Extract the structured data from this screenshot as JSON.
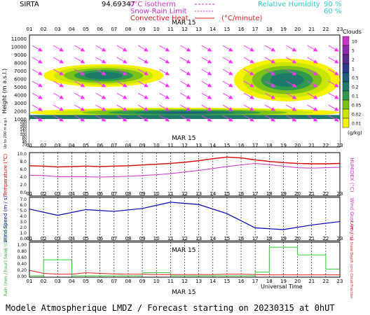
{
  "header": {
    "site": "SIRTA",
    "coords": "94.69347",
    "legend_isotherm": "0°C isotherm",
    "legend_snowrain": "Snow-Rain Limit",
    "legend_convective": "Convective Heat.",
    "legend_rate": "(°C/minute)",
    "legend_rh": "Relative Humidity",
    "rh_90": "90 %",
    "rh_60": "60 %"
  },
  "date_label": "MAR 15",
  "x_hours": [
    "01",
    "02",
    "03",
    "04",
    "05",
    "06",
    "07",
    "08",
    "09",
    "10",
    "11",
    "12",
    "13",
    "14",
    "15",
    "16",
    "17",
    "18",
    "19",
    "20",
    "21",
    "22",
    "23"
  ],
  "footer": {
    "model": "Modele Atmospherique LMDZ / Forecast starting on 20230315 at 0hUT",
    "universal_time": "Universal Time"
  },
  "colors": {
    "clouds": [
      "#f7f300",
      "#cbe600",
      "#7ac21a",
      "#2f9a4e",
      "#1d7a6a",
      "#1c5e7c",
      "#2a3b8c",
      "#5a2a8c",
      "#8c2bb0",
      "#cc33cc"
    ],
    "wind_arrow": "#ff33ff",
    "temperature": "#dd0000",
    "humidex": "#cc33cc",
    "wind": "#0000bb",
    "precip": "#33cc33",
    "cape": "#dd2222"
  },
  "chart_data": [
    {
      "type": "heatmap",
      "title": "Clouds",
      "ylabel": "Height (m a.s.l.)",
      "ylabel2": "Up to 200 m a.g.l.",
      "yticks": [
        "11000",
        "10000",
        "9000",
        "8000",
        "7000",
        "6000",
        "5000",
        "4000",
        "3000",
        "2000",
        "1000"
      ],
      "yticks_low": [
        "200",
        "180",
        "160",
        "140",
        "120",
        "100",
        "80",
        "60",
        "40",
        "20"
      ],
      "colorbar": [
        "0.01",
        "0.02",
        "0.05",
        "0.1",
        "0.2",
        "0.5",
        "1",
        "2",
        "5",
        "10"
      ],
      "colorbar_unit": "(g/kg)",
      "cloud_layers": [
        {
          "name": "mid-level",
          "x_start": 2.0,
          "x_end": 10.5,
          "base": 5000,
          "top": 7800
        },
        {
          "name": "upper",
          "x_start": 15.5,
          "x_end": 23,
          "base": 3200,
          "top": 8500
        },
        {
          "name": "low",
          "x_start": 1,
          "x_end": 23,
          "base": 1200,
          "top": 2400
        }
      ]
    },
    {
      "type": "line",
      "ylabel": "Temperature (°C)",
      "ylabel2": "HUMIDEX (°C)",
      "yticks": [
        "10.0",
        "8.0",
        "6.0",
        "4.0",
        "2.0",
        "0.0"
      ],
      "ylim": [
        0,
        10
      ],
      "x": [
        1,
        2,
        3,
        4,
        5,
        6,
        7,
        8,
        9,
        10,
        11,
        12,
        13,
        14,
        15,
        16,
        17,
        18,
        19,
        20,
        21,
        22,
        23
      ],
      "series": [
        {
          "name": "Temperature",
          "values": [
            7.0,
            6.9,
            6.7,
            6.8,
            6.9,
            6.8,
            6.9,
            7.0,
            7.2,
            7.4,
            7.6,
            7.9,
            8.3,
            8.8,
            9.2,
            9.0,
            8.5,
            8.1,
            7.8,
            7.6,
            7.5,
            7.5,
            7.6
          ]
        },
        {
          "name": "HUMIDEX",
          "values": [
            4.6,
            4.5,
            4.2,
            4.2,
            4.2,
            4.1,
            4.2,
            4.3,
            4.5,
            4.7,
            5.0,
            5.4,
            5.8,
            6.3,
            6.8,
            7.2,
            7.6,
            7.3,
            6.9,
            6.5,
            6.4,
            6.5,
            6.6
          ]
        }
      ]
    },
    {
      "type": "line",
      "ylabel": "Wind Speed (m / s)",
      "ylabel2": "Wind Gust (m / s)",
      "yticks": [
        "7.0",
        "6.0",
        "5.0",
        "4.0",
        "3.0",
        "2.0",
        "1.0",
        "0.0"
      ],
      "ylim": [
        0,
        7
      ],
      "x": [
        1,
        3,
        5,
        7,
        9,
        11,
        13,
        15,
        17,
        19,
        21,
        23
      ],
      "series": [
        {
          "name": "Wind Speed",
          "values": [
            5.2,
            4.1,
            5.1,
            4.8,
            5.3,
            6.4,
            6.0,
            4.4,
            1.9,
            1.6,
            2.4,
            3.0
          ]
        }
      ]
    },
    {
      "type": "bar",
      "ylabel": "Rain (mm / hour) Snow (cm / hour)",
      "ylabel2": "CAPE (J / g) Snow Depth (cm) Cloud Fraction",
      "yticks": [
        "1.00",
        "0.80",
        "0.60",
        "0.40",
        "0.20",
        "0.00"
      ],
      "ylim": [
        0,
        1
      ],
      "x": [
        1,
        2,
        3,
        4,
        5,
        6,
        7,
        8,
        9,
        10,
        11,
        12,
        13,
        14,
        15,
        16,
        17,
        18,
        19,
        20,
        21,
        22,
        23
      ],
      "series": [
        {
          "name": "Rain",
          "values": [
            0,
            0.52,
            0.52,
            0,
            0,
            0,
            0,
            0,
            0.1,
            0.1,
            0,
            0,
            0,
            0,
            0,
            0,
            0.12,
            0.93,
            0.93,
            0.68,
            0.68,
            0.22,
            0.22
          ]
        },
        {
          "name": "CAPE",
          "values": [
            0.18,
            0.08,
            0.05,
            0.05,
            0.1,
            0.08,
            0.06,
            0.05,
            0.05,
            0.04,
            0.04,
            0.04,
            0.04,
            0.04,
            0.05,
            0.05,
            0.04,
            0.03,
            0.03,
            0.03,
            0.03,
            0.03,
            0.03
          ]
        }
      ]
    }
  ]
}
